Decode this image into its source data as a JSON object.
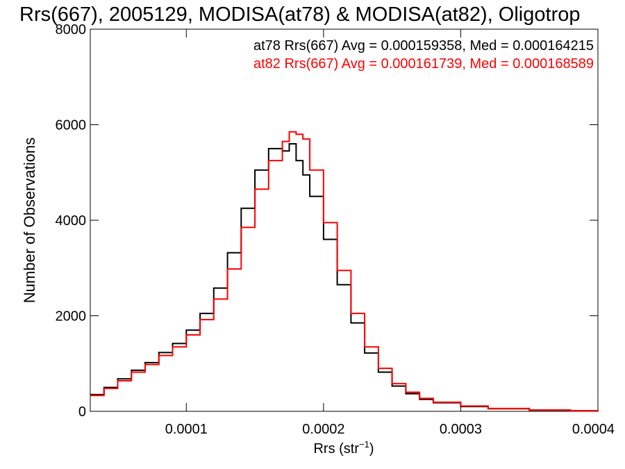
{
  "chart_data": {
    "type": "line",
    "title": "Rrs(667), 2005129, MODISA(at78) & MODISA(at82), Oligotrop",
    "xlabel_main": "Rrs (str",
    "xlabel_sup": "−1",
    "xlabel_close": ")",
    "ylabel": "Number of Observations",
    "xlim": [
      3e-05,
      0.0004
    ],
    "ylim": [
      0,
      8000
    ],
    "x_ticks": [
      0.0001,
      0.0002,
      0.0003,
      0.0004
    ],
    "x_tick_labels": [
      "0.0001",
      "0.0002",
      "0.0003",
      "0.0004"
    ],
    "y_ticks": [
      0,
      2000,
      4000,
      6000,
      8000
    ],
    "y_tick_labels": [
      "0",
      "2000",
      "4000",
      "6000",
      "8000"
    ],
    "grid": false,
    "annotations": [
      {
        "text": "at78 Rrs(667) Avg = 0.000159358, Med = 0.000164215",
        "color": "#000000"
      },
      {
        "text": "at82 Rrs(667) Avg = 0.000161739, Med = 0.000168589",
        "color": "#ff0000"
      }
    ],
    "series": [
      {
        "color": "#000000",
        "style": "step",
        "x": [
          3e-05,
          4e-05,
          5e-05,
          6e-05,
          7e-05,
          8e-05,
          9e-05,
          0.0001,
          0.00011,
          0.00012,
          0.00013,
          0.00014,
          0.00015,
          0.00016,
          0.00017,
          0.000175,
          0.00018,
          0.000185,
          0.00019,
          0.0002,
          0.00021,
          0.00022,
          0.00023,
          0.00024,
          0.00025,
          0.00026,
          0.00027,
          0.00028,
          0.0003,
          0.00032,
          0.00035,
          0.00038,
          0.0004
        ],
        "values": [
          350,
          500,
          680,
          860,
          1020,
          1230,
          1420,
          1700,
          2050,
          2580,
          3320,
          4250,
          5050,
          5500,
          5450,
          5600,
          5250,
          4950,
          4500,
          3600,
          2650,
          1850,
          1220,
          820,
          530,
          370,
          250,
          180,
          100,
          55,
          25,
          12,
          5
        ]
      },
      {
        "color": "#ff0000",
        "style": "step",
        "x": [
          3e-05,
          4e-05,
          5e-05,
          6e-05,
          7e-05,
          8e-05,
          9e-05,
          0.0001,
          0.00011,
          0.00012,
          0.00013,
          0.00014,
          0.00015,
          0.00016,
          0.00017,
          0.000175,
          0.00018,
          0.000185,
          0.00019,
          0.0002,
          0.00021,
          0.00022,
          0.00023,
          0.00024,
          0.00025,
          0.00026,
          0.00027,
          0.00028,
          0.0003,
          0.00032,
          0.00035,
          0.00038,
          0.0004
        ],
        "values": [
          330,
          480,
          640,
          820,
          980,
          1170,
          1350,
          1600,
          1920,
          2350,
          2980,
          3850,
          4650,
          5250,
          5650,
          5850,
          5800,
          5700,
          5050,
          3950,
          2950,
          2050,
          1350,
          900,
          580,
          400,
          270,
          190,
          110,
          60,
          28,
          13,
          5
        ]
      }
    ]
  }
}
